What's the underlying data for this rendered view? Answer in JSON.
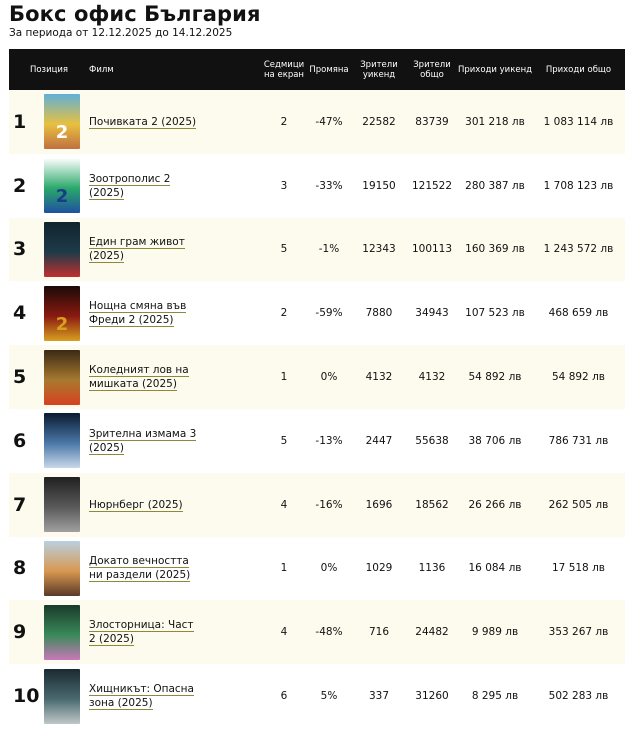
{
  "page": {
    "title": "Бокс офис България",
    "subtitle": "За периода от 12.12.2025 до 14.12.2025"
  },
  "table": {
    "headers": {
      "position": "Позиция",
      "film": "Филм",
      "weeks": "Седмици на екран",
      "change": "Промяна",
      "viewers_weekend": "Зрители уикенд",
      "viewers_total": "Зрители общо",
      "revenue_weekend": "Приходи уикенд",
      "revenue_total": "Приходи общо"
    },
    "rows": [
      {
        "pos": "1",
        "film": "Почивката 2 (2025)",
        "weeks": "2",
        "change": "-47%",
        "vw": "22582",
        "vt": "83739",
        "rw": "301 218 лв",
        "rt": "1 083 114 лв",
        "poster_colors": [
          "#5fb0d8",
          "#e8c040",
          "#c07040"
        ]
      },
      {
        "pos": "2",
        "film": "Зоотрополис 2 (2025)",
        "weeks": "3",
        "change": "-33%",
        "vw": "19150",
        "vt": "121522",
        "rw": "280 387 лв",
        "rt": "1 708 123 лв",
        "poster_colors": [
          "#ffffff",
          "#2aa86a",
          "#2050a0"
        ]
      },
      {
        "pos": "3",
        "film": "Един грам живот (2025)",
        "weeks": "5",
        "change": "-1%",
        "vw": "12343",
        "vt": "100113",
        "rw": "160 369 лв",
        "rt": "1 243 572 лв",
        "poster_colors": [
          "#10242e",
          "#1e3a48",
          "#c03030"
        ]
      },
      {
        "pos": "4",
        "film": "Нощна смяна във Фреди 2 (2025)",
        "weeks": "2",
        "change": "-59%",
        "vw": "7880",
        "vt": "34943",
        "rw": "107 523 лв",
        "rt": "468 659 лв",
        "poster_colors": [
          "#1a0a08",
          "#8a1a10",
          "#d8a020"
        ]
      },
      {
        "pos": "5",
        "film": "Коледният лов на мишката (2025)",
        "weeks": "1",
        "change": "0%",
        "vw": "4132",
        "vt": "4132",
        "rw": "54 892 лв",
        "rt": "54 892 лв",
        "poster_colors": [
          "#3a2a14",
          "#a87a30",
          "#d84020"
        ]
      },
      {
        "pos": "6",
        "film": "Зрителна измама 3 (2025)",
        "weeks": "5",
        "change": "-13%",
        "vw": "2447",
        "vt": "55638",
        "rw": "38 706 лв",
        "rt": "786 731 лв",
        "poster_colors": [
          "#0a1a30",
          "#4a78a8",
          "#c8d8e8"
        ]
      },
      {
        "pos": "7",
        "film": "Нюрнберг (2025)",
        "weeks": "4",
        "change": "-16%",
        "vw": "1696",
        "vt": "18562",
        "rw": "26 266 лв",
        "rt": "262 505 лв",
        "poster_colors": [
          "#202020",
          "#5a5a5a",
          "#a0a0a0"
        ]
      },
      {
        "pos": "8",
        "film": "Докато вечността ни раздели (2025)",
        "weeks": "1",
        "change": "0%",
        "vw": "1029",
        "vt": "1136",
        "rw": "16 084 лв",
        "rt": "17 518 лв",
        "poster_colors": [
          "#b8d0e0",
          "#d89850",
          "#5a3a28"
        ]
      },
      {
        "pos": "9",
        "film": "Злосторница: Част 2 (2025)",
        "weeks": "4",
        "change": "-48%",
        "vw": "716",
        "vt": "24482",
        "rw": "9 989 лв",
        "rt": "353 267 лв",
        "poster_colors": [
          "#1a3a2a",
          "#3a8a5a",
          "#c878b8"
        ]
      },
      {
        "pos": "10",
        "film": "Хищникът: Опасна зона (2025)",
        "weeks": "6",
        "change": "5%",
        "vw": "337",
        "vt": "31260",
        "rw": "8 295 лв",
        "rt": "502 283 лв",
        "poster_colors": [
          "#1a2a30",
          "#4a6a70",
          "#c0c8c8"
        ]
      }
    ]
  }
}
